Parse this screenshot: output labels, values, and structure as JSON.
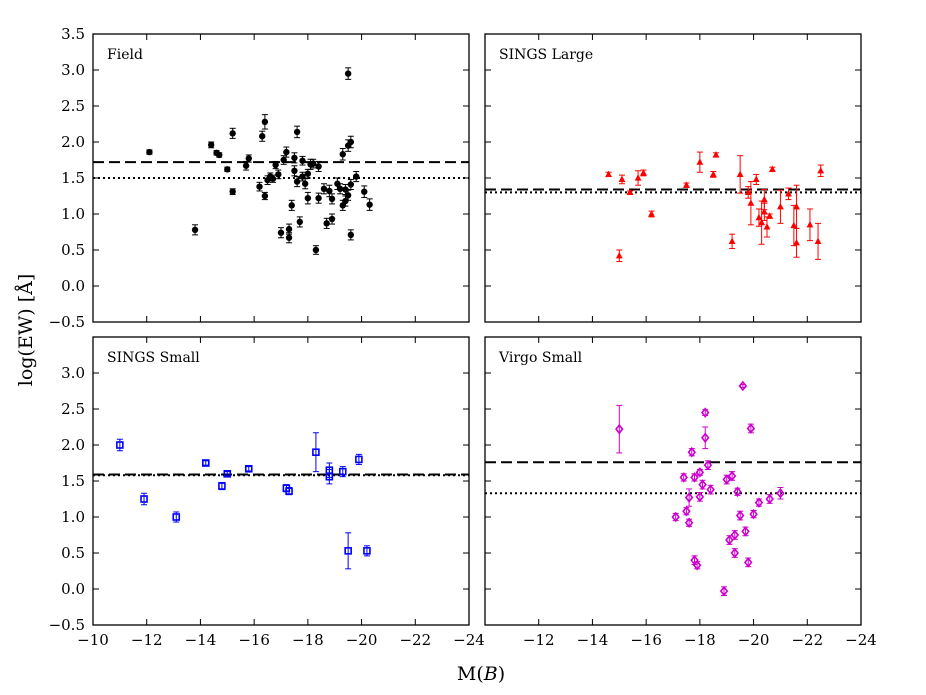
{
  "figure": {
    "ylabel": "log(EW) [Å]",
    "xlabel": "M(B)",
    "xlabel_main": "M(",
    "xlabel_italic": "B",
    "xlabel_close": ")",
    "xlim": [
      -10,
      -24
    ],
    "ylim": [
      -0.5,
      3.5
    ],
    "xticks": [
      -10,
      -12,
      -14,
      -16,
      -18,
      -20,
      -22,
      -24
    ],
    "xtick_labels": [
      "−10",
      "−12",
      "−14",
      "−16",
      "−18",
      "−20",
      "−22",
      "−24"
    ],
    "xtick_labels_right": [
      "",
      "−12",
      "−14",
      "−16",
      "−18",
      "−20",
      "−22",
      "−24"
    ],
    "yticks": [
      -0.5,
      0.0,
      0.5,
      1.0,
      1.5,
      2.0,
      2.5,
      3.0,
      3.5
    ],
    "ytick_labels_top": [
      "−0.5",
      "0.0",
      "0.5",
      "1.0",
      "1.5",
      "2.0",
      "2.5",
      "3.0",
      "3.5"
    ],
    "ytick_labels_bottom": [
      "−0.5",
      "0.0",
      "0.5",
      "1.0",
      "1.5",
      "2.0",
      "2.5",
      "3.0",
      ""
    ]
  },
  "chart_data": [
    {
      "type": "scatter",
      "title": "Field",
      "color": "#000000",
      "marker": "circle",
      "mean_line": 1.72,
      "median_line": 1.5,
      "points": [
        [
          -12.1,
          1.86,
          0.03
        ],
        [
          -13.8,
          0.78,
          0.07
        ],
        [
          -14.4,
          1.96,
          0.04
        ],
        [
          -14.6,
          1.85,
          0.03
        ],
        [
          -14.7,
          1.82,
          0.03
        ],
        [
          -15.0,
          1.62,
          0.03
        ],
        [
          -15.2,
          2.12,
          0.07
        ],
        [
          -15.2,
          1.31,
          0.04
        ],
        [
          -15.8,
          1.77,
          0.05
        ],
        [
          -15.7,
          1.67,
          0.06
        ],
        [
          -16.2,
          1.38,
          0.06
        ],
        [
          -16.3,
          2.08,
          0.07
        ],
        [
          -16.4,
          2.28,
          0.1
        ],
        [
          -16.4,
          1.25,
          0.05
        ],
        [
          -16.5,
          1.47,
          0.06
        ],
        [
          -16.6,
          1.52,
          0.05
        ],
        [
          -16.7,
          1.49,
          0.05
        ],
        [
          -16.8,
          1.68,
          0.05
        ],
        [
          -16.9,
          1.55,
          0.06
        ],
        [
          -17.0,
          0.74,
          0.07
        ],
        [
          -17.1,
          1.75,
          0.06
        ],
        [
          -17.2,
          1.86,
          0.07
        ],
        [
          -17.3,
          0.67,
          0.07
        ],
        [
          -17.3,
          0.79,
          0.07
        ],
        [
          -17.4,
          1.12,
          0.07
        ],
        [
          -17.5,
          1.6,
          0.07
        ],
        [
          -17.5,
          1.78,
          0.07
        ],
        [
          -17.6,
          2.14,
          0.08
        ],
        [
          -17.6,
          1.45,
          0.07
        ],
        [
          -17.7,
          0.89,
          0.07
        ],
        [
          -17.8,
          1.52,
          0.06
        ],
        [
          -17.8,
          1.74,
          0.06
        ],
        [
          -17.9,
          1.42,
          0.07
        ],
        [
          -18.0,
          1.56,
          0.06
        ],
        [
          -18.0,
          1.22,
          0.08
        ],
        [
          -18.1,
          1.69,
          0.07
        ],
        [
          -18.2,
          1.7,
          0.06
        ],
        [
          -18.3,
          0.5,
          0.06
        ],
        [
          -18.4,
          1.66,
          0.07
        ],
        [
          -18.4,
          1.22,
          0.07
        ],
        [
          -18.6,
          1.35,
          0.07
        ],
        [
          -18.7,
          0.87,
          0.07
        ],
        [
          -18.8,
          1.32,
          0.08
        ],
        [
          -18.9,
          0.93,
          0.07
        ],
        [
          -18.9,
          1.21,
          0.07
        ],
        [
          -19.1,
          1.42,
          0.08
        ],
        [
          -19.2,
          1.35,
          0.07
        ],
        [
          -19.3,
          1.12,
          0.07
        ],
        [
          -19.3,
          1.83,
          0.08
        ],
        [
          -19.4,
          1.34,
          0.07
        ],
        [
          -19.4,
          1.18,
          0.07
        ],
        [
          -19.5,
          1.26,
          0.07
        ],
        [
          -19.5,
          1.95,
          0.08
        ],
        [
          -19.5,
          2.95,
          0.08
        ],
        [
          -19.6,
          1.41,
          0.07
        ],
        [
          -19.6,
          2.0,
          0.08
        ],
        [
          -19.6,
          0.71,
          0.07
        ],
        [
          -19.8,
          1.52,
          0.07
        ],
        [
          -20.1,
          1.31,
          0.08
        ],
        [
          -20.3,
          1.13,
          0.08
        ]
      ]
    },
    {
      "type": "scatter",
      "title": "SINGS Large",
      "color": "#ff0000",
      "marker": "triangle",
      "mean_line": 1.34,
      "median_line": 1.3,
      "points": [
        [
          -14.6,
          1.55,
          0.03
        ],
        [
          -15.0,
          0.42,
          0.08
        ],
        [
          -15.1,
          1.48,
          0.06
        ],
        [
          -15.4,
          1.3,
          0.02
        ],
        [
          -15.7,
          1.5,
          0.1
        ],
        [
          -15.9,
          1.57,
          0.04
        ],
        [
          -16.2,
          1.0,
          0.04
        ],
        [
          -17.5,
          1.4,
          0.03
        ],
        [
          -18.0,
          1.72,
          0.14
        ],
        [
          -18.5,
          1.55,
          0.04
        ],
        [
          -18.6,
          1.82,
          0.03
        ],
        [
          -19.2,
          0.62,
          0.1
        ],
        [
          -19.5,
          1.55,
          0.26
        ],
        [
          -19.8,
          1.3,
          0.08
        ],
        [
          -19.9,
          1.15,
          0.3
        ],
        [
          -20.1,
          1.48,
          0.07
        ],
        [
          -20.2,
          0.95,
          0.12
        ],
        [
          -20.3,
          0.88,
          0.3
        ],
        [
          -20.4,
          1.03,
          0.12
        ],
        [
          -20.4,
          1.2,
          0.14
        ],
        [
          -20.5,
          0.82,
          0.14
        ],
        [
          -20.6,
          0.97,
          0.03
        ],
        [
          -20.7,
          1.62,
          0.03
        ],
        [
          -21.0,
          1.1,
          0.23
        ],
        [
          -21.3,
          1.28,
          0.08
        ],
        [
          -21.5,
          0.84,
          0.28
        ],
        [
          -21.6,
          1.1,
          0.3
        ],
        [
          -21.6,
          0.6,
          0.2
        ],
        [
          -22.1,
          0.85,
          0.22
        ],
        [
          -22.4,
          0.62,
          0.25
        ],
        [
          -22.5,
          1.6,
          0.08
        ]
      ]
    },
    {
      "type": "scatter",
      "title": "SINGS Small",
      "color": "#0000ff",
      "marker": "square",
      "mean_line": 1.59,
      "median_line": 1.58,
      "points": [
        [
          -11.0,
          2.0,
          0.08
        ],
        [
          -11.9,
          1.25,
          0.08
        ],
        [
          -13.1,
          1.0,
          0.07
        ],
        [
          -14.2,
          1.75,
          0.03
        ],
        [
          -14.8,
          1.43,
          0.05
        ],
        [
          -15.0,
          1.6,
          0.03
        ],
        [
          -15.8,
          1.67,
          0.03
        ],
        [
          -17.2,
          1.4,
          0.05
        ],
        [
          -17.3,
          1.36,
          0.05
        ],
        [
          -18.3,
          1.9,
          0.27
        ],
        [
          -18.8,
          1.65,
          0.1
        ],
        [
          -18.8,
          1.56,
          0.1
        ],
        [
          -19.3,
          1.63,
          0.07
        ],
        [
          -19.5,
          0.53,
          0.25
        ],
        [
          -19.9,
          1.8,
          0.07
        ],
        [
          -20.2,
          0.53,
          0.07
        ]
      ]
    },
    {
      "type": "scatter",
      "title": "Virgo Small",
      "color": "#cc00cc",
      "marker": "diamond",
      "mean_line": 1.76,
      "median_line": 1.33,
      "points": [
        [
          -15.0,
          2.22,
          0.33
        ],
        [
          -17.1,
          1.0,
          0.05
        ],
        [
          -17.4,
          1.55,
          0.05
        ],
        [
          -17.5,
          1.08,
          0.05
        ],
        [
          -17.6,
          1.27,
          0.12
        ],
        [
          -17.7,
          1.9,
          0.05
        ],
        [
          -17.6,
          0.92,
          0.05
        ],
        [
          -17.8,
          1.55,
          0.05
        ],
        [
          -17.8,
          0.4,
          0.06
        ],
        [
          -17.9,
          0.33,
          0.05
        ],
        [
          -18.0,
          1.28,
          0.06
        ],
        [
          -18.0,
          1.62,
          0.04
        ],
        [
          -18.1,
          1.45,
          0.06
        ],
        [
          -18.2,
          2.45,
          0.04
        ],
        [
          -18.2,
          2.1,
          0.15
        ],
        [
          -18.3,
          1.72,
          0.06
        ],
        [
          -18.4,
          1.38,
          0.06
        ],
        [
          -18.9,
          -0.03,
          0.06
        ],
        [
          -19.0,
          1.52,
          0.06
        ],
        [
          -19.1,
          0.68,
          0.06
        ],
        [
          -19.2,
          1.57,
          0.06
        ],
        [
          -19.3,
          0.5,
          0.06
        ],
        [
          -19.3,
          0.75,
          0.06
        ],
        [
          -19.4,
          1.35,
          0.05
        ],
        [
          -19.5,
          1.02,
          0.06
        ],
        [
          -19.6,
          2.82,
          0.02
        ],
        [
          -19.7,
          0.8,
          0.06
        ],
        [
          -19.8,
          0.37,
          0.06
        ],
        [
          -19.9,
          2.23,
          0.06
        ],
        [
          -20.0,
          1.04,
          0.05
        ],
        [
          -20.2,
          1.2,
          0.05
        ],
        [
          -20.6,
          1.25,
          0.06
        ],
        [
          -21.0,
          1.33,
          0.08
        ]
      ]
    }
  ]
}
